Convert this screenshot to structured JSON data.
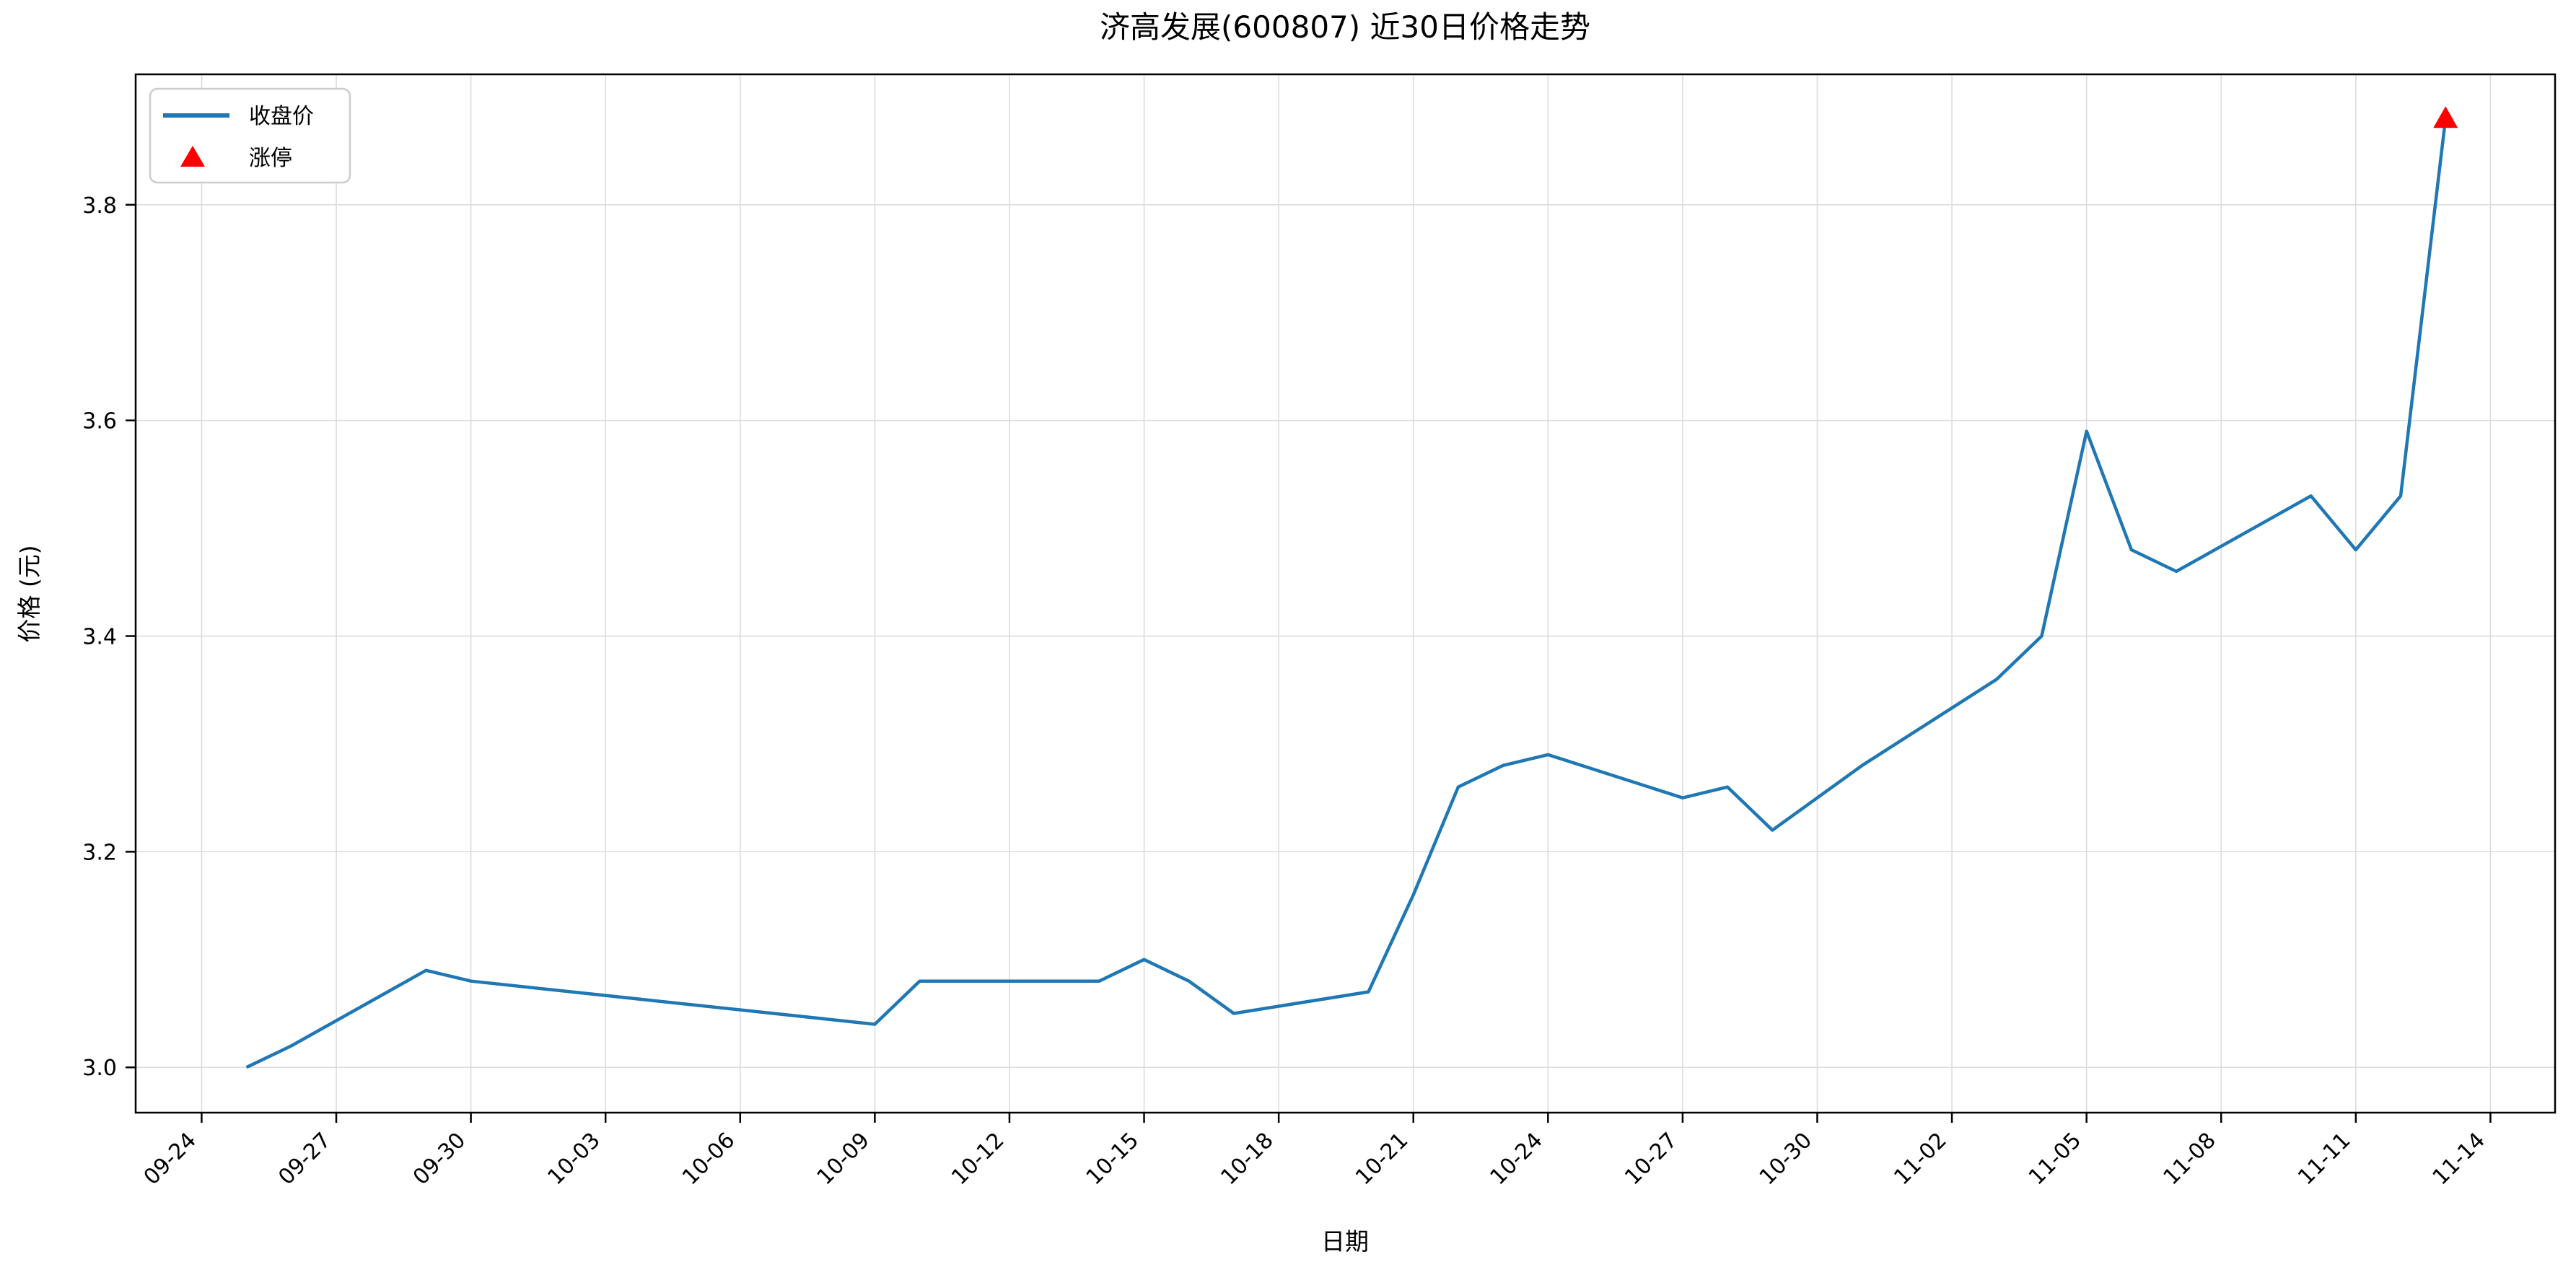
{
  "figure": {
    "title": "济高发展(600807) 近30日价格走势",
    "xlabel": "日期",
    "ylabel": "价格 (元)",
    "background_color": "#ffffff",
    "grid_color": "#dcdcdc",
    "spine_color": "#000000"
  },
  "legend": {
    "items": [
      {
        "label": "收盘价",
        "symbol": "line-sample",
        "color": "#1f77b4"
      },
      {
        "label": "涨停",
        "symbol": "triangle-sample",
        "color": "#ff0000"
      }
    ]
  },
  "chart_data": {
    "type": "line",
    "title": "济高发展(600807) 近30日价格走势",
    "xlabel": "日期",
    "ylabel": "价格 (元)",
    "grid": true,
    "legend_position": "upper-left",
    "ylim": [
      2.958,
      3.921
    ],
    "xlim_days": [
      -1.47,
      52.44
    ],
    "y_ticks": [
      {
        "value": 3.0,
        "label": "3.0"
      },
      {
        "value": 3.2,
        "label": "3.2"
      },
      {
        "value": 3.4,
        "label": "3.4"
      },
      {
        "value": 3.6,
        "label": "3.6"
      },
      {
        "value": 3.8,
        "label": "3.8"
      }
    ],
    "x_ticks": [
      {
        "day": 0,
        "label": "09-24"
      },
      {
        "day": 3,
        "label": "09-27"
      },
      {
        "day": 6,
        "label": "09-30"
      },
      {
        "day": 9,
        "label": "10-03"
      },
      {
        "day": 12,
        "label": "10-06"
      },
      {
        "day": 15,
        "label": "10-09"
      },
      {
        "day": 18,
        "label": "10-12"
      },
      {
        "day": 21,
        "label": "10-15"
      },
      {
        "day": 24,
        "label": "10-18"
      },
      {
        "day": 27,
        "label": "10-21"
      },
      {
        "day": 30,
        "label": "10-24"
      },
      {
        "day": 33,
        "label": "10-27"
      },
      {
        "day": 36,
        "label": "10-30"
      },
      {
        "day": 39,
        "label": "11-02"
      },
      {
        "day": 42,
        "label": "11-05"
      },
      {
        "day": 45,
        "label": "11-08"
      },
      {
        "day": 48,
        "label": "11-11"
      },
      {
        "day": 51,
        "label": "11-14"
      }
    ],
    "series": [
      {
        "name": "收盘价",
        "color": "#1f77b4",
        "line_width": 4.5,
        "points": [
          {
            "date": "09-25",
            "day": 1,
            "close": 3.0
          },
          {
            "date": "09-26",
            "day": 2,
            "close": 3.02
          },
          {
            "date": "09-29",
            "day": 5,
            "close": 3.09
          },
          {
            "date": "09-30",
            "day": 6,
            "close": 3.08
          },
          {
            "date": "10-09",
            "day": 15,
            "close": 3.04
          },
          {
            "date": "10-10",
            "day": 16,
            "close": 3.08
          },
          {
            "date": "10-13",
            "day": 19,
            "close": 3.08
          },
          {
            "date": "10-14",
            "day": 20,
            "close": 3.08
          },
          {
            "date": "10-15",
            "day": 21,
            "close": 3.1
          },
          {
            "date": "10-16",
            "day": 22,
            "close": 3.08
          },
          {
            "date": "10-17",
            "day": 23,
            "close": 3.05
          },
          {
            "date": "10-20",
            "day": 26,
            "close": 3.07
          },
          {
            "date": "10-21",
            "day": 27,
            "close": 3.16
          },
          {
            "date": "10-22",
            "day": 28,
            "close": 3.26
          },
          {
            "date": "10-23",
            "day": 29,
            "close": 3.28
          },
          {
            "date": "10-24",
            "day": 30,
            "close": 3.29
          },
          {
            "date": "10-27",
            "day": 33,
            "close": 3.25
          },
          {
            "date": "10-28",
            "day": 34,
            "close": 3.26
          },
          {
            "date": "10-29",
            "day": 35,
            "close": 3.22
          },
          {
            "date": "10-30",
            "day": 36,
            "close": 3.25
          },
          {
            "date": "10-31",
            "day": 37,
            "close": 3.28
          },
          {
            "date": "11-03",
            "day": 40,
            "close": 3.36
          },
          {
            "date": "11-04",
            "day": 41,
            "close": 3.4
          },
          {
            "date": "11-05",
            "day": 42,
            "close": 3.59
          },
          {
            "date": "11-06",
            "day": 43,
            "close": 3.48
          },
          {
            "date": "11-07",
            "day": 44,
            "close": 3.46
          },
          {
            "date": "11-10",
            "day": 47,
            "close": 3.53
          },
          {
            "date": "11-11",
            "day": 48,
            "close": 3.48
          },
          {
            "date": "11-12",
            "day": 49,
            "close": 3.53
          },
          {
            "date": "11-13",
            "day": 50,
            "close": 3.88
          }
        ]
      }
    ],
    "markers": [
      {
        "name": "涨停",
        "shape": "triangle-up",
        "color": "#ff0000",
        "date": "11-13",
        "day": 50,
        "value": 3.88
      }
    ]
  }
}
